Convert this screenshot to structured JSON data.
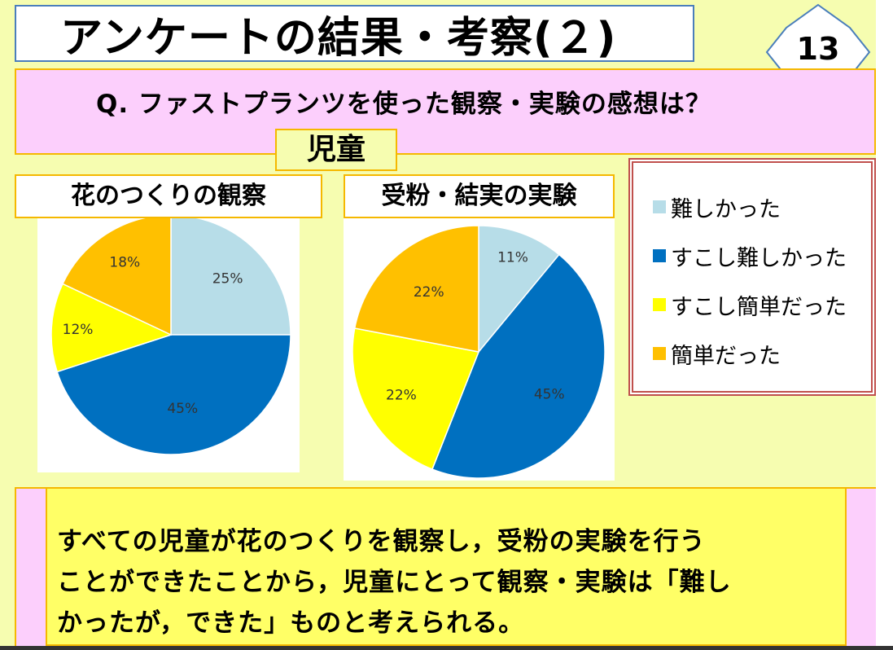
{
  "title": "アンケートの結果・考察(２)",
  "slide_number": "13",
  "question": "Q.  ファストプランツを使った観察・実験の感想は？",
  "group_label": "児童",
  "legend": {
    "items": [
      {
        "label": "難しかった",
        "color": "#b7dde8"
      },
      {
        "label": "すこし難しかった",
        "color": "#0070c0"
      },
      {
        "label": "すこし簡単だった",
        "color": "#ffff00"
      },
      {
        "label": "簡単だった",
        "color": "#ffc000"
      }
    ]
  },
  "conclusion": {
    "line1": "すべての児童が花のつくりを観察し，受粉の実験を行う",
    "line2": "ことができたことから，児童にとって観察・実験は「難し",
    "line3": "かったが，できた」ものと考えられる。"
  },
  "chart_data": [
    {
      "type": "pie",
      "title": "花のつくりの観察",
      "categories": [
        "難しかった",
        "すこし難しかった",
        "すこし簡単だった",
        "簡単だった"
      ],
      "values": [
        25,
        45,
        12,
        18
      ],
      "labels": [
        "25%",
        "45%",
        "12%",
        "18%"
      ],
      "colors": [
        "#b7dde8",
        "#0070c0",
        "#ffff00",
        "#ffc000"
      ],
      "legend_position": "right"
    },
    {
      "type": "pie",
      "title": "受粉・結実の実験",
      "categories": [
        "難しかった",
        "すこし難しかった",
        "すこし簡単だった",
        "簡単だった"
      ],
      "values": [
        11,
        45,
        22,
        22
      ],
      "labels": [
        "11%",
        "45%",
        "22%",
        "22%"
      ],
      "colors": [
        "#b7dde8",
        "#0070c0",
        "#ffff00",
        "#ffc000"
      ],
      "legend_position": "right"
    }
  ]
}
